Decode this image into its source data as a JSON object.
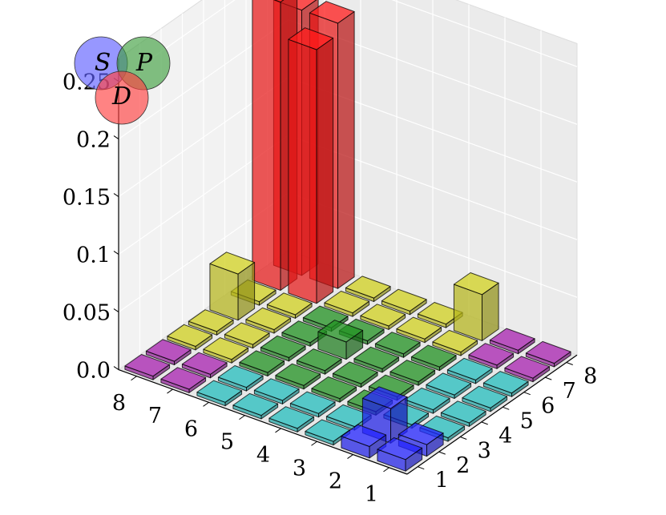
{
  "chart_data": {
    "type": "bar3d",
    "title": "",
    "zlim": [
      0,
      0.25
    ],
    "z_ticks": [
      "0.0",
      "0.05",
      "0.1",
      "0.15",
      "0.2",
      "0.25"
    ],
    "x_ticks": [
      "1",
      "2",
      "3",
      "4",
      "5",
      "6",
      "7",
      "8"
    ],
    "y_ticks": [
      "1",
      "2",
      "3",
      "4",
      "5",
      "6",
      "7",
      "8"
    ],
    "grid": true,
    "colors": {
      "red": "#ff1a1a",
      "blue": "#2222ff",
      "green": "#1f8a1f",
      "cyan": "#22b5b5",
      "yellow": "#c8c81e",
      "purple": "#a020a8"
    },
    "bars": [
      {
        "x": 1,
        "y": 1,
        "z": 0.01,
        "color": "blue"
      },
      {
        "x": 1,
        "y": 2,
        "z": 0.01,
        "color": "blue"
      },
      {
        "x": 2,
        "y": 1,
        "z": 0.01,
        "color": "blue"
      },
      {
        "x": 2,
        "y": 2,
        "z": 0.03,
        "color": "blue"
      },
      {
        "x": 1,
        "y": 3,
        "z": 0.003,
        "color": "cyan"
      },
      {
        "x": 1,
        "y": 4,
        "z": 0.003,
        "color": "cyan"
      },
      {
        "x": 1,
        "y": 5,
        "z": 0.003,
        "color": "cyan"
      },
      {
        "x": 1,
        "y": 6,
        "z": 0.003,
        "color": "cyan"
      },
      {
        "x": 1,
        "y": 7,
        "z": 0.003,
        "color": "purple"
      },
      {
        "x": 1,
        "y": 8,
        "z": 0.003,
        "color": "purple"
      },
      {
        "x": 2,
        "y": 3,
        "z": 0.003,
        "color": "cyan"
      },
      {
        "x": 2,
        "y": 4,
        "z": 0.003,
        "color": "cyan"
      },
      {
        "x": 2,
        "y": 5,
        "z": 0.003,
        "color": "cyan"
      },
      {
        "x": 2,
        "y": 6,
        "z": 0.003,
        "color": "cyan"
      },
      {
        "x": 2,
        "y": 7,
        "z": 0.003,
        "color": "purple"
      },
      {
        "x": 2,
        "y": 8,
        "z": 0.003,
        "color": "purple"
      },
      {
        "x": 3,
        "y": 1,
        "z": 0.003,
        "color": "cyan"
      },
      {
        "x": 3,
        "y": 2,
        "z": 0.003,
        "color": "cyan"
      },
      {
        "x": 3,
        "y": 3,
        "z": 0.003,
        "color": "green"
      },
      {
        "x": 3,
        "y": 4,
        "z": 0.003,
        "color": "green"
      },
      {
        "x": 3,
        "y": 5,
        "z": 0.003,
        "color": "green"
      },
      {
        "x": 3,
        "y": 6,
        "z": 0.003,
        "color": "green"
      },
      {
        "x": 3,
        "y": 7,
        "z": 0.003,
        "color": "yellow"
      },
      {
        "x": 3,
        "y": 8,
        "z": 0.003,
        "color": "yellow"
      },
      {
        "x": 4,
        "y": 1,
        "z": 0.003,
        "color": "cyan"
      },
      {
        "x": 4,
        "y": 2,
        "z": 0.003,
        "color": "cyan"
      },
      {
        "x": 4,
        "y": 3,
        "z": 0.003,
        "color": "green"
      },
      {
        "x": 4,
        "y": 4,
        "z": 0.003,
        "color": "green"
      },
      {
        "x": 4,
        "y": 5,
        "z": 0.003,
        "color": "green"
      },
      {
        "x": 4,
        "y": 6,
        "z": 0.003,
        "color": "green"
      },
      {
        "x": 4,
        "y": 7,
        "z": 0.003,
        "color": "yellow"
      },
      {
        "x": 4,
        "y": 8,
        "z": 0.003,
        "color": "yellow"
      },
      {
        "x": 5,
        "y": 1,
        "z": 0.003,
        "color": "cyan"
      },
      {
        "x": 5,
        "y": 2,
        "z": 0.003,
        "color": "cyan"
      },
      {
        "x": 5,
        "y": 3,
        "z": 0.003,
        "color": "green"
      },
      {
        "x": 5,
        "y": 4,
        "z": 0.003,
        "color": "green"
      },
      {
        "x": 5,
        "y": 5,
        "z": 0.015,
        "color": "green"
      },
      {
        "x": 5,
        "y": 6,
        "z": 0.003,
        "color": "green"
      },
      {
        "x": 5,
        "y": 7,
        "z": 0.003,
        "color": "yellow"
      },
      {
        "x": 5,
        "y": 8,
        "z": 0.04,
        "color": "yellow"
      },
      {
        "x": 6,
        "y": 1,
        "z": 0.003,
        "color": "cyan"
      },
      {
        "x": 6,
        "y": 2,
        "z": 0.003,
        "color": "cyan"
      },
      {
        "x": 6,
        "y": 3,
        "z": 0.003,
        "color": "green"
      },
      {
        "x": 6,
        "y": 4,
        "z": 0.003,
        "color": "green"
      },
      {
        "x": 6,
        "y": 5,
        "z": 0.003,
        "color": "green"
      },
      {
        "x": 6,
        "y": 6,
        "z": 0.003,
        "color": "green"
      },
      {
        "x": 6,
        "y": 7,
        "z": 0.003,
        "color": "yellow"
      },
      {
        "x": 6,
        "y": 8,
        "z": 0.003,
        "color": "yellow"
      },
      {
        "x": 7,
        "y": 1,
        "z": 0.003,
        "color": "purple"
      },
      {
        "x": 7,
        "y": 2,
        "z": 0.003,
        "color": "purple"
      },
      {
        "x": 7,
        "y": 3,
        "z": 0.003,
        "color": "yellow"
      },
      {
        "x": 7,
        "y": 4,
        "z": 0.003,
        "color": "yellow"
      },
      {
        "x": 7,
        "y": 5,
        "z": 0.003,
        "color": "yellow"
      },
      {
        "x": 7,
        "y": 6,
        "z": 0.003,
        "color": "yellow"
      },
      {
        "x": 7,
        "y": 7,
        "z": 0.22,
        "color": "red"
      },
      {
        "x": 7,
        "y": 8,
        "z": 0.25,
        "color": "red"
      },
      {
        "x": 8,
        "y": 1,
        "z": 0.003,
        "color": "purple"
      },
      {
        "x": 8,
        "y": 2,
        "z": 0.003,
        "color": "purple"
      },
      {
        "x": 8,
        "y": 3,
        "z": 0.04,
        "color": "yellow"
      },
      {
        "x": 8,
        "y": 4,
        "z": 0.003,
        "color": "yellow"
      },
      {
        "x": 8,
        "y": 5,
        "z": 0.003,
        "color": "yellow"
      },
      {
        "x": 8,
        "y": 6,
        "z": 0.003,
        "color": "yellow"
      },
      {
        "x": 8,
        "y": 7,
        "z": 0.23,
        "color": "red"
      },
      {
        "x": 8,
        "y": 8,
        "z": 0.23,
        "color": "red"
      }
    ],
    "venn": {
      "labels": [
        "S",
        "P",
        "D"
      ],
      "colors": [
        "#6060ff",
        "#40a040",
        "#ff4040"
      ]
    }
  }
}
